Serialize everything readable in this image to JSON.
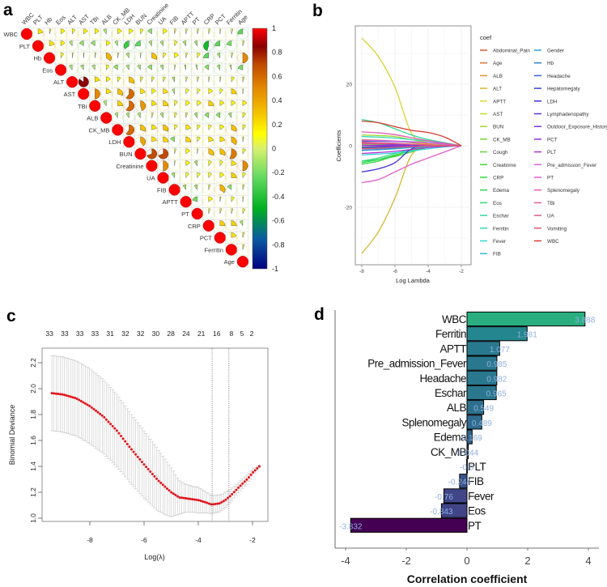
{
  "panels": {
    "a": "a",
    "b": "b",
    "c": "c",
    "d": "d"
  },
  "chart_data": [
    {
      "panel": "a",
      "type": "heatmap",
      "style": "pie correlation matrix (upper triangle)",
      "variables": [
        "WBC",
        "PLT",
        "Hb",
        "Eos",
        "ALT",
        "AST",
        "TBi",
        "ALB",
        "CK_MB",
        "LDH",
        "BUN",
        "Creatinine",
        "UA",
        "FIB",
        "APTT",
        "PT",
        "CRP",
        "PCT",
        "Ferritin",
        "Age"
      ],
      "upper": [
        [
          0.2,
          0.05,
          0.15,
          0.1,
          0.15,
          0.15,
          -0.1,
          0.15,
          0.15,
          0.1,
          -0.15,
          0.15,
          0.05,
          0.05,
          0.05,
          0.05,
          0.02,
          0.05,
          -0.25
        ],
        [
          0.2,
          0.15,
          -0.1,
          -0.15,
          -0.15,
          0.15,
          -0.1,
          -0.35,
          -0.25,
          -0.1,
          -0.1,
          0.1,
          -0.1,
          -0.1,
          -0.45,
          -0.25,
          -0.2,
          0.05
        ],
        [
          0.1,
          0.03,
          0.02,
          0.03,
          0.35,
          0.03,
          -0.1,
          0.02,
          0.3,
          0.1,
          0.15,
          0.05,
          0.1,
          -0.25,
          -0.1,
          0.05,
          0.5
        ],
        [
          -0.1,
          -0.1,
          -0.1,
          0.1,
          -0.15,
          -0.1,
          -0.1,
          -0.15,
          -0.1,
          0.03,
          -0.05,
          -0.05,
          -0.15,
          -0.1,
          -0.05,
          -0.2
        ],
        [
          0.85,
          0.2,
          0.15,
          0.1,
          0.3,
          0.08,
          0.08,
          0.08,
          -0.08,
          0.05,
          0.05,
          0.03,
          0.03,
          0.1,
          0.05
        ],
        [
          0.5,
          0.2,
          0.3,
          0.6,
          0.2,
          0.15,
          0.2,
          -0.08,
          0.1,
          0.1,
          0.15,
          0.1,
          0.25,
          0.02
        ],
        [
          -0.1,
          0.25,
          0.6,
          0.45,
          0.2,
          0.25,
          0.1,
          0.15,
          0.15,
          0.25,
          0.15,
          0.15,
          0.15
        ],
        [
          -0.1,
          -0.1,
          -0.1,
          0.05,
          -0.1,
          0.08,
          0.05,
          -0.1,
          -0.15,
          -0.15,
          -0.1,
          0.1
        ],
        [
          0.6,
          0.3,
          0.2,
          0.3,
          0.1,
          0.2,
          0.1,
          0.1,
          0.15,
          0.3,
          0.1
        ],
        [
          0.4,
          0.2,
          0.25,
          -0.15,
          0.25,
          0.1,
          0.2,
          0.2,
          0.35,
          0.03
        ],
        [
          0.7,
          0.7,
          0.05,
          0.15,
          0.03,
          0.3,
          0.3,
          0.55,
          0.1
        ],
        [
          0.5,
          0.02,
          0.15,
          -0.1,
          0.1,
          0.1,
          0.2,
          0.5
        ],
        [
          -0.1,
          0.1,
          0.1,
          0.1,
          0.15,
          0.25,
          0.1
        ],
        [
          -0.1,
          -0.1,
          0.05,
          0.35,
          -0.15,
          0.05
        ],
        [
          -0.2,
          0.15,
          0.03,
          0.1,
          0.02
        ],
        [
          0.05,
          0.05,
          0.05,
          0.08
        ],
        [
          0.25,
          0.25,
          -0.1
        ],
        [
          0.2,
          0.05
        ],
        [
          0.05
        ]
      ],
      "colorbar": {
        "ticks": [
          "1",
          "0.8",
          "0.6",
          "0.4",
          "0.2",
          "0",
          "-0.2",
          "-0.4",
          "-0.6",
          "-0.8",
          "-1"
        ],
        "range": [
          -1,
          1
        ]
      }
    },
    {
      "panel": "b",
      "type": "line",
      "xlabel": "Log Lambda",
      "ylabel": "Coefficients",
      "x": [
        -8,
        -7,
        -6,
        -5,
        -4,
        -3,
        -2
      ],
      "xticks": [
        "-8",
        "-6",
        "-4",
        "-2"
      ],
      "yticks": [
        "20",
        "0",
        "-20"
      ],
      "ylim": [
        -39,
        39
      ],
      "grid": true,
      "legend_title": "coef",
      "legend_position": "right",
      "series": [
        {
          "name": "Abdominal_Pain",
          "values": [
            1,
            0.8,
            0.6,
            0.4,
            0.2,
            0.1,
            0
          ]
        },
        {
          "name": "Age",
          "values": [
            0.5,
            0.4,
            0.3,
            0.2,
            0.1,
            0,
            0
          ]
        },
        {
          "name": "ALB",
          "values": [
            2,
            1.8,
            1.5,
            1,
            0.6,
            0.3,
            0
          ]
        },
        {
          "name": "ALT",
          "values": [
            -35,
            -28,
            -17,
            -3,
            -0.5,
            0,
            0
          ]
        },
        {
          "name": "APTT",
          "values": [
            35,
            29,
            19,
            4,
            1,
            0.5,
            0
          ]
        },
        {
          "name": "AST",
          "values": [
            0.5,
            0.3,
            0.2,
            0.1,
            0,
            0,
            0
          ]
        },
        {
          "name": "BUN",
          "values": [
            3.5,
            3.3,
            3,
            2,
            1,
            0.3,
            0
          ]
        },
        {
          "name": "CK_MB",
          "values": [
            0.3,
            0.2,
            0.1,
            0.1,
            0.05,
            0,
            0
          ]
        },
        {
          "name": "Cough",
          "values": [
            -0.5,
            -0.4,
            -0.3,
            -0.2,
            -0.1,
            0,
            0
          ]
        },
        {
          "name": "Creatinine",
          "values": [
            -5,
            -4.5,
            -3.5,
            -2,
            -0.5,
            0,
            0
          ]
        },
        {
          "name": "CRP",
          "values": [
            -6,
            -5,
            -3.2,
            -1.5,
            -0.5,
            0,
            0
          ]
        },
        {
          "name": "Edema",
          "values": [
            -5.5,
            -4.5,
            -3,
            -1.5,
            -0.4,
            -0.1,
            0
          ]
        },
        {
          "name": "Eos",
          "values": [
            -5,
            -4,
            -2.5,
            -1.2,
            -0.3,
            0,
            0
          ]
        },
        {
          "name": "Eschar",
          "values": [
            8.5,
            7.5,
            5.5,
            3.5,
            2,
            1,
            0
          ]
        },
        {
          "name": "Ferritin",
          "values": [
            3,
            2.8,
            2.5,
            2,
            1.5,
            0.8,
            0
          ]
        },
        {
          "name": "Fever",
          "values": [
            -3,
            -2.7,
            -2.3,
            -1.7,
            -1,
            -0.4,
            0
          ]
        },
        {
          "name": "FIB",
          "values": [
            -1.5,
            -1.3,
            -1,
            -0.6,
            -0.3,
            -0.1,
            0
          ]
        },
        {
          "name": "Gender",
          "values": [
            -1,
            -0.8,
            -0.6,
            -0.3,
            -0.1,
            0,
            0
          ]
        },
        {
          "name": "Hb",
          "values": [
            -1.5,
            -1.2,
            -0.8,
            -0.4,
            -0.1,
            0,
            0
          ]
        },
        {
          "name": "Headache",
          "values": [
            1.5,
            1.5,
            1.4,
            1.2,
            1,
            0.5,
            0
          ]
        },
        {
          "name": "Hepatomegaly",
          "values": [
            -0.8,
            -0.6,
            -0.4,
            -0.2,
            0,
            0,
            0
          ]
        },
        {
          "name": "LDH",
          "values": [
            -8.5,
            -7.5,
            -5.5,
            -1,
            0,
            0,
            0
          ]
        },
        {
          "name": "Lymphadenopathy",
          "values": [
            0.8,
            0.6,
            0.4,
            0.2,
            0.1,
            0,
            0
          ]
        },
        {
          "name": "Outdoor_Exposure_History",
          "values": [
            -0.3,
            -0.2,
            -0.1,
            0,
            0,
            0,
            0
          ]
        },
        {
          "name": "PCT",
          "values": [
            0.2,
            0.1,
            0.1,
            0,
            0,
            0,
            0
          ]
        },
        {
          "name": "PLT",
          "values": [
            -2.5,
            -2.2,
            -1.8,
            -1.2,
            -0.6,
            -0.2,
            0
          ]
        },
        {
          "name": "Pre_admission_Fever",
          "values": [
            1.8,
            1.7,
            1.5,
            1.3,
            1,
            0.5,
            0
          ]
        },
        {
          "name": "PT",
          "values": [
            -12,
            -11,
            -8.5,
            -6,
            -4,
            -2,
            0
          ]
        },
        {
          "name": "Splenomegaly",
          "values": [
            4.5,
            4.2,
            3.6,
            2.6,
            1.6,
            0.8,
            0
          ]
        },
        {
          "name": "TBi",
          "values": [
            1.2,
            1,
            0.8,
            0.5,
            0.3,
            0.1,
            0
          ]
        },
        {
          "name": "UA",
          "values": [
            0.8,
            0.7,
            0.6,
            0.5,
            0.3,
            0.1,
            0
          ]
        },
        {
          "name": "Vomiting",
          "values": [
            -1,
            -0.8,
            -0.5,
            -0.3,
            -0.1,
            0,
            0
          ]
        },
        {
          "name": "WBC",
          "values": [
            8,
            7.5,
            6.2,
            5,
            4.3,
            2.8,
            0
          ]
        }
      ]
    },
    {
      "panel": "c",
      "type": "scatter",
      "style": "cross-validation curve with error bars",
      "xlabel": "Log(λ)",
      "ylabel": "Binomial Deviance",
      "xticks": [
        "-8",
        "-6",
        "-4",
        "-2"
      ],
      "yticks": [
        "1.0",
        "1.2",
        "1.4",
        "1.6",
        "1.8",
        "2.0",
        "2.2"
      ],
      "xlim": [
        -9.7,
        -1.4
      ],
      "ylim": [
        0.98,
        2.32
      ],
      "log_lambda": [
        -9.4,
        -9,
        -8.5,
        -8,
        -7.5,
        -7,
        -6.5,
        -6,
        -5.5,
        -5,
        -4.7,
        -4.5,
        -4.2,
        -4,
        -3.7,
        -3.5,
        -3.2,
        -3,
        -2.8,
        -2.5,
        -2.2,
        -2,
        -1.75
      ],
      "mean_deviance": [
        1.965,
        1.955,
        1.925,
        1.865,
        1.785,
        1.675,
        1.54,
        1.415,
        1.295,
        1.2,
        1.16,
        1.155,
        1.145,
        1.14,
        1.12,
        1.105,
        1.115,
        1.14,
        1.175,
        1.24,
        1.3,
        1.35,
        1.4
      ],
      "std_error": [
        0.29,
        0.29,
        0.29,
        0.29,
        0.285,
        0.28,
        0.27,
        0.26,
        0.24,
        0.19,
        0.13,
        0.11,
        0.1,
        0.1,
        0.08,
        0.07,
        0.065,
        0.06,
        0.05,
        0.04,
        0.035,
        0.03,
        0.01
      ],
      "lambda_min": -3.49,
      "lambda_1se": -2.87,
      "top_axis": {
        "labels": [
          "33",
          "33",
          "33",
          "33",
          "31",
          "32",
          "32",
          "30",
          "28",
          "24",
          "21",
          "16",
          "8",
          "5",
          "2"
        ],
        "at": [
          -9.49,
          -8.93,
          -8.37,
          -7.81,
          -7.25,
          -6.69,
          -6.13,
          -5.57,
          -5.01,
          -4.45,
          -3.89,
          -3.32,
          -2.78,
          -2.39,
          -2.03
        ]
      },
      "point_color": "#e0141b",
      "errorbar_color": "#bbbbbb"
    },
    {
      "panel": "d",
      "type": "bar",
      "orientation": "horizontal",
      "xlabel": "Correlation coefficient",
      "xticks": [
        "-4",
        "-2",
        "0",
        "2",
        "4"
      ],
      "xlim": [
        -4.3,
        4.5
      ],
      "categories": [
        "WBC",
        "Ferritin",
        "APTT",
        "Pre_admission_Fever",
        "Headache",
        "Eschar",
        "ALB",
        "Splenomegaly",
        "Edema",
        "CK_MB",
        "PLT",
        "FIB",
        "Fever",
        "Eos",
        "PT"
      ],
      "values": [
        3.888,
        1.981,
        1.077,
        0.985,
        0.982,
        0.965,
        0.549,
        0.489,
        0.169,
        0.044,
        -0.01,
        -0.244,
        -0.76,
        -0.843,
        -3.832
      ],
      "value_labels": [
        "3.888",
        "1.981",
        "1.077",
        "0.985",
        "0.982",
        "0.965",
        "0.549",
        "0.489",
        "0.169",
        "0.044",
        "-0.0",
        "-0.244",
        "-0.76",
        "-0.843",
        "-3.832"
      ],
      "colors": [
        "#2aae80",
        "#24868e",
        "#29798e",
        "#2a788e",
        "#2a788e",
        "#2a778e",
        "#2d708e",
        "#2f6c8e",
        "#33638d",
        "#355f8d",
        "#365c8d",
        "#3a538b",
        "#404688",
        "#414487",
        "#440154"
      ],
      "value_label_color": "#8fb0e0"
    }
  ]
}
